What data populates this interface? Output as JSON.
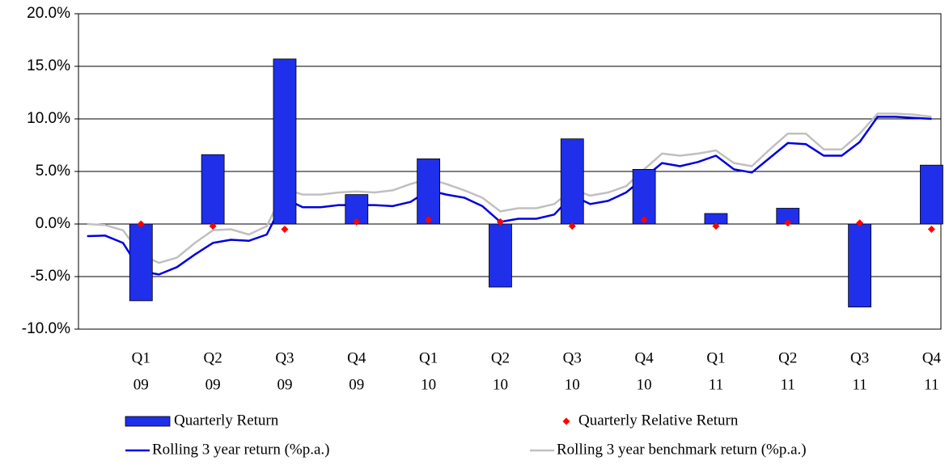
{
  "chart_data": {
    "type": "combo",
    "categories": [
      [
        "Q1",
        "09"
      ],
      [
        "Q2",
        "09"
      ],
      [
        "Q3",
        "09"
      ],
      [
        "Q4",
        "09"
      ],
      [
        "Q1",
        "10"
      ],
      [
        "Q2",
        "10"
      ],
      [
        "Q3",
        "10"
      ],
      [
        "Q4",
        "10"
      ],
      [
        "Q1",
        "11"
      ],
      [
        "Q2",
        "11"
      ],
      [
        "Q3",
        "11"
      ],
      [
        "Q4",
        "11"
      ]
    ],
    "x": [
      -0.75,
      -0.5,
      -0.25,
      0,
      0.25,
      0.5,
      0.75,
      1,
      1.25,
      1.5,
      1.75,
      2,
      2.25,
      2.5,
      2.75,
      3,
      3.25,
      3.5,
      3.75,
      4,
      4.25,
      4.5,
      4.75,
      5,
      5.25,
      5.5,
      5.75,
      6,
      6.25,
      6.5,
      6.75,
      7,
      7.25,
      7.5,
      7.75,
      8,
      8.25,
      8.5,
      8.75,
      9,
      9.25,
      9.5,
      9.75,
      10,
      10.25,
      10.5,
      10.75,
      11
    ],
    "series": [
      {
        "name": "Quarterly Return",
        "type": "bar",
        "color": "#1f2fea",
        "values": [
          -7.3,
          6.6,
          15.7,
          2.8,
          6.2,
          -6.0,
          8.1,
          5.2,
          1.0,
          1.5,
          -7.9,
          5.6
        ]
      },
      {
        "name": "Quarterly Relative Return",
        "type": "scatter",
        "color": "#ff0000",
        "values": [
          0,
          -0.2,
          -0.5,
          0.2,
          0.4,
          0.2,
          -0.2,
          0.4,
          -0.2,
          0.1,
          0.1,
          -0.5
        ]
      },
      {
        "name": "Rolling 3 year return (%p.a.)",
        "type": "line",
        "color": "#0000e0",
        "values": [
          -1.15,
          -1.1,
          -1.8,
          -4.5,
          -4.8,
          -4.1,
          -2.9,
          -1.8,
          -1.5,
          -1.6,
          -1.0,
          2.4,
          1.6,
          1.6,
          1.8,
          1.8,
          1.8,
          1.7,
          2.1,
          3.2,
          2.8,
          2.5,
          1.7,
          0.2,
          0.5,
          0.5,
          0.9,
          2.7,
          1.9,
          2.2,
          3.0,
          4.4,
          5.8,
          5.5,
          5.9,
          6.5,
          5.2,
          4.9,
          6.3,
          7.7,
          7.6,
          6.5,
          6.5,
          7.8,
          10.2,
          10.2,
          10.1,
          10.0
        ]
      },
      {
        "name": "Rolling 3 year benchmark return (%p.a.)",
        "type": "line",
        "color": "#c0c0c0",
        "values": [
          0,
          -0.1,
          -0.6,
          -2.9,
          -3.7,
          -3.2,
          -1.8,
          -0.6,
          -0.5,
          -1.0,
          -0.2,
          3.3,
          2.8,
          2.8,
          3.0,
          3.1,
          3.0,
          3.2,
          3.8,
          4.3,
          3.8,
          3.2,
          2.5,
          1.2,
          1.5,
          1.5,
          1.9,
          3.3,
          2.7,
          3.0,
          3.6,
          5.2,
          6.7,
          6.5,
          6.7,
          7.0,
          5.8,
          5.5,
          7.1,
          8.6,
          8.6,
          7.1,
          7.1,
          8.6,
          10.5,
          10.5,
          10.4,
          10.2
        ]
      }
    ],
    "ylim": [
      -10,
      20
    ],
    "yticks": [
      {
        "value": -10,
        "label": "-10.0%"
      },
      {
        "value": -5,
        "label": "-5.0%"
      },
      {
        "value": 0,
        "label": "0.0%"
      },
      {
        "value": 5,
        "label": "5.0%"
      },
      {
        "value": 10,
        "label": "10.0%"
      },
      {
        "value": 15,
        "label": "15.0%"
      },
      {
        "value": 20,
        "label": "20.0%"
      }
    ],
    "grid": true
  }
}
